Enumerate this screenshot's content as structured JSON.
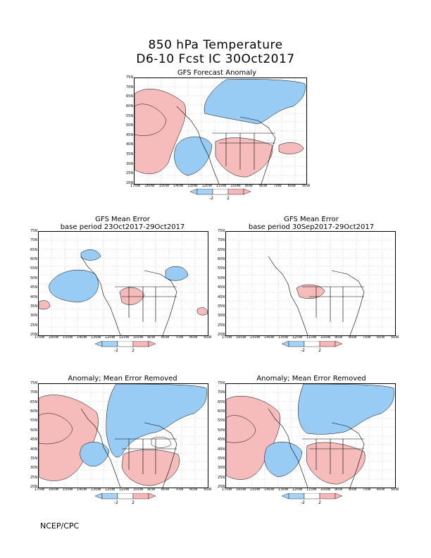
{
  "header": {
    "title_line1": "850 hPa Temperature",
    "title_line2": "D6-10 Fcst IC 30Oct2017"
  },
  "panels": [
    {
      "id": "forecast",
      "title": "GFS Forecast Anomaly",
      "subtitle": ""
    },
    {
      "id": "mean-error-5d",
      "title": "GFS Mean Error",
      "subtitle": "base period 23Oct2017-29Oct2017"
    },
    {
      "id": "mean-error-30d",
      "title": "GFS Mean Error",
      "subtitle": "base period 30Sep2017-29Oct2017"
    },
    {
      "id": "corrected-5d",
      "title": "Anomaly; Mean Error Removed",
      "subtitle": ""
    },
    {
      "id": "corrected-30d",
      "title": "Anomaly; Mean Error Removed",
      "subtitle": ""
    }
  ],
  "axes": {
    "lat_labels": [
      "75N",
      "70N",
      "65N",
      "60N",
      "55N",
      "50N",
      "45N",
      "40N",
      "35N",
      "30N",
      "25N",
      "20N"
    ],
    "lon_labels": [
      "170W",
      "160W",
      "150W",
      "140W",
      "130W",
      "120W",
      "110W",
      "100W",
      "90W",
      "80W",
      "70W",
      "60W",
      "50W"
    ]
  },
  "legend": {
    "labels": [
      "-2",
      "2"
    ],
    "colors": {
      "cold": "#a6d2f5",
      "warm": "#f5b7b7",
      "neutral": "#ffffff"
    }
  },
  "colors": {
    "cold": "#99ccf5",
    "warm": "#f6bcbc"
  },
  "footer": {
    "credit": "NCEP/CPC"
  }
}
